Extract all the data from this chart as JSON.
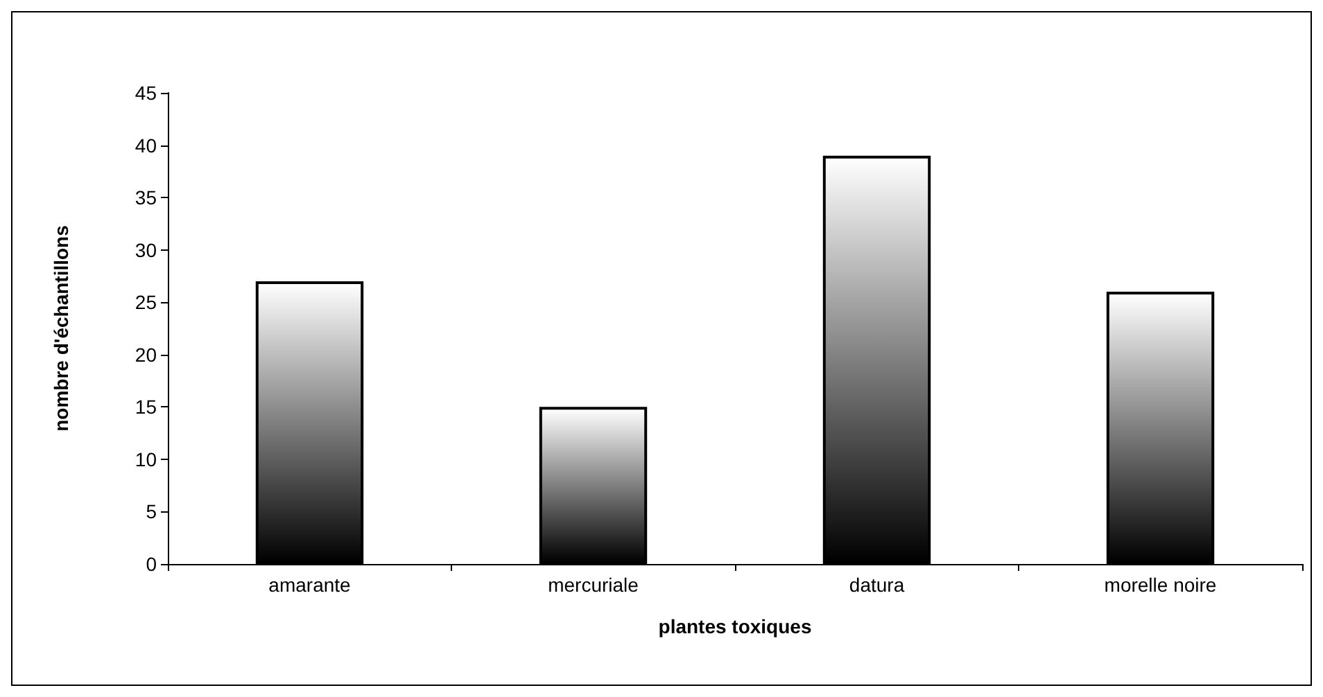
{
  "chart_data": {
    "type": "bar",
    "xlabel": "plantes toxiques",
    "ylabel": "nombre d'échantillons",
    "categories": [
      "amarante",
      "mercuriale",
      "datura",
      "morelle noire"
    ],
    "values": [
      27,
      15,
      39,
      26
    ],
    "color": "#000000",
    "ylim": [
      0,
      45
    ],
    "yticks": [
      0,
      5,
      10,
      15,
      20,
      25,
      30,
      35,
      40,
      45
    ],
    "grid": false
  }
}
